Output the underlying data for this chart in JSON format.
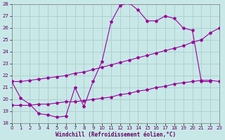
{
  "xlabel": "Windchill (Refroidissement éolien,°C)",
  "background_color": "#c8e8e8",
  "grid_color": "#b0d0d0",
  "line_color": "#990099",
  "xlim": [
    0,
    23
  ],
  "ylim": [
    18,
    28
  ],
  "xticks": [
    0,
    1,
    2,
    3,
    4,
    5,
    6,
    7,
    8,
    9,
    10,
    11,
    12,
    13,
    14,
    15,
    16,
    17,
    18,
    19,
    20,
    21,
    22,
    23
  ],
  "yticks": [
    18,
    19,
    20,
    21,
    22,
    23,
    24,
    25,
    26,
    27,
    28
  ],
  "curve1_x": [
    0,
    1,
    2,
    3,
    4,
    5,
    6,
    7,
    8,
    9,
    10,
    11,
    12,
    13,
    14,
    15,
    16,
    17,
    18,
    19,
    20,
    21,
    22,
    23
  ],
  "curve1_y": [
    21.5,
    20.1,
    19.6,
    18.8,
    18.7,
    18.5,
    18.6,
    21.0,
    19.4,
    21.5,
    23.2,
    26.5,
    27.9,
    28.1,
    27.5,
    26.6,
    26.6,
    27.0,
    26.8,
    26.0,
    25.8,
    21.5,
    21.5,
    null
  ],
  "curve2_x": [
    0,
    1,
    2,
    3,
    4,
    5,
    6,
    7,
    8,
    9,
    10,
    11,
    12,
    13,
    14,
    15,
    16,
    17,
    18,
    19,
    20,
    21,
    22,
    23
  ],
  "curve2_y": [
    19.5,
    19.5,
    19.5,
    19.6,
    19.6,
    19.7,
    19.8,
    19.8,
    19.9,
    20.0,
    20.1,
    20.2,
    20.4,
    20.5,
    20.7,
    20.8,
    21.0,
    21.1,
    21.3,
    21.4,
    21.5,
    21.6,
    21.6,
    21.5
  ],
  "curve3_x": [
    0,
    1,
    2,
    3,
    4,
    5,
    6,
    7,
    8,
    9,
    10,
    11,
    12,
    13,
    14,
    15,
    16,
    17,
    18,
    19,
    20,
    21,
    22,
    23
  ],
  "curve3_y": [
    21.5,
    21.5,
    21.6,
    21.7,
    21.8,
    21.9,
    22.0,
    22.2,
    22.3,
    22.5,
    22.7,
    22.9,
    23.1,
    23.3,
    23.5,
    23.7,
    23.9,
    24.1,
    24.3,
    24.5,
    24.8,
    25.0,
    25.6,
    26.0
  ]
}
